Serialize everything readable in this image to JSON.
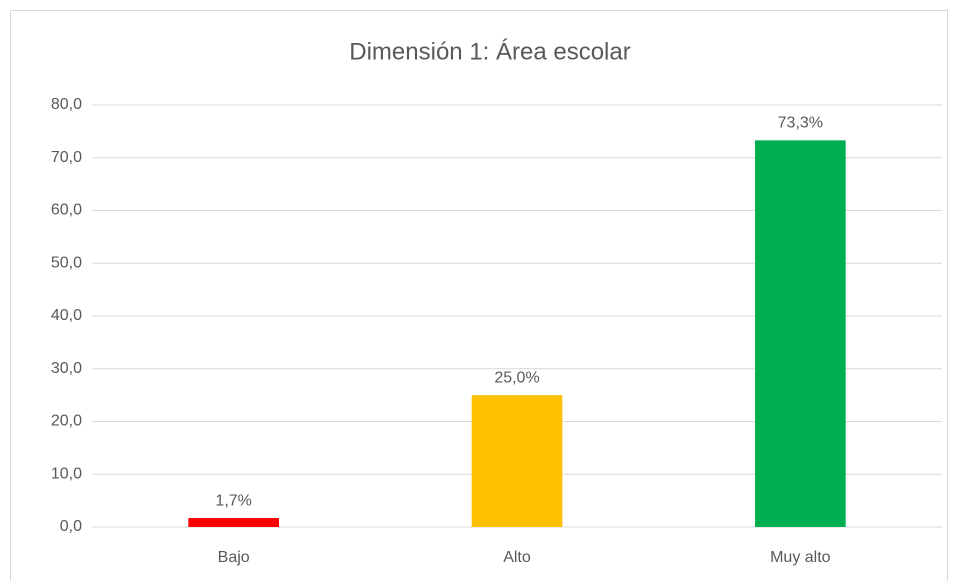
{
  "chart_data": {
    "type": "bar",
    "title": "Dimensión 1: Área escolar",
    "categories": [
      "Bajo",
      "Alto",
      "Muy alto"
    ],
    "values": [
      1.7,
      25.0,
      73.3
    ],
    "value_labels": [
      "1,7%",
      "25,0%",
      "73,3%"
    ],
    "colors": [
      "#ff0000",
      "#ffc000",
      "#00b050"
    ],
    "ylim": [
      0,
      80
    ],
    "yticks": [
      {
        "value": 0,
        "label": "0,0"
      },
      {
        "value": 10,
        "label": "10,0"
      },
      {
        "value": 20,
        "label": "20,0"
      },
      {
        "value": 30,
        "label": "30,0"
      },
      {
        "value": 40,
        "label": "40,0"
      },
      {
        "value": 50,
        "label": "50,0"
      },
      {
        "value": 60,
        "label": "60,0"
      },
      {
        "value": 70,
        "label": "70,0"
      },
      {
        "value": 80,
        "label": "80,0"
      }
    ],
    "grid": true
  }
}
